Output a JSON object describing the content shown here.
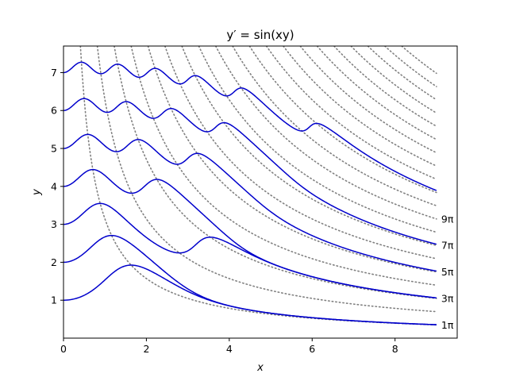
{
  "chart_data": {
    "type": "line",
    "title": "y′ = sin(xy)",
    "xlabel": "x",
    "ylabel": "y",
    "xlim": [
      0,
      9.5
    ],
    "ylim": [
      0,
      7.7
    ],
    "x_ticks": [
      0,
      2,
      4,
      6,
      8
    ],
    "y_ticks": [
      1,
      2,
      3,
      4,
      5,
      6,
      7
    ],
    "x_tick_labels": [
      "0",
      "2",
      "4",
      "6",
      "8"
    ],
    "y_tick_labels": [
      "1",
      "2",
      "3",
      "4",
      "5",
      "6",
      "7"
    ],
    "grid": false,
    "ode": "dy/dx = sin(x*y)",
    "solution_series": {
      "color": "#0000cc",
      "x_range": [
        0,
        9
      ],
      "initial_y": [
        1,
        2,
        3,
        4,
        5,
        6,
        7
      ]
    },
    "reference_curves": {
      "equation": "x*y = c",
      "style": "dotted",
      "color": "#808080",
      "c_values_over_pi": [
        1,
        2,
        3,
        4,
        5,
        6,
        7,
        8,
        9,
        10,
        11,
        12,
        13,
        14,
        15,
        16,
        17,
        18,
        19,
        20
      ],
      "labels": [
        {
          "label": "1π",
          "c_over_pi": 1
        },
        {
          "label": "3π",
          "c_over_pi": 3
        },
        {
          "label": "5π",
          "c_over_pi": 5
        },
        {
          "label": "7π",
          "c_over_pi": 7
        },
        {
          "label": "9π",
          "c_over_pi": 9
        }
      ]
    },
    "colors": {
      "solution": "#0000cc",
      "reference": "#808080",
      "axes": "#000000"
    }
  }
}
